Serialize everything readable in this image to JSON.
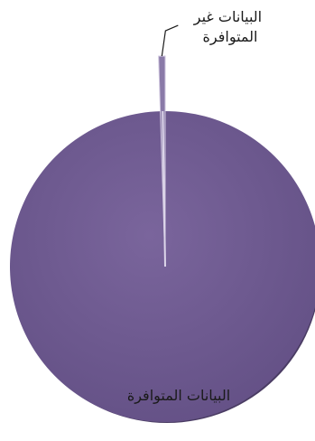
{
  "chart_data": {
    "type": "pie",
    "title": "",
    "legend": "none",
    "slices": [
      {
        "label_lines": [
          "البيانات غير",
          "المتوافرة"
        ],
        "value": 0.5,
        "color": "#8a7aa8",
        "label_position": "outside-top"
      },
      {
        "label_lines": [
          "البيانات المتوافرة"
        ],
        "value": 99.5,
        "color": "#6e5a90",
        "label_position": "inside-bottom"
      }
    ]
  }
}
